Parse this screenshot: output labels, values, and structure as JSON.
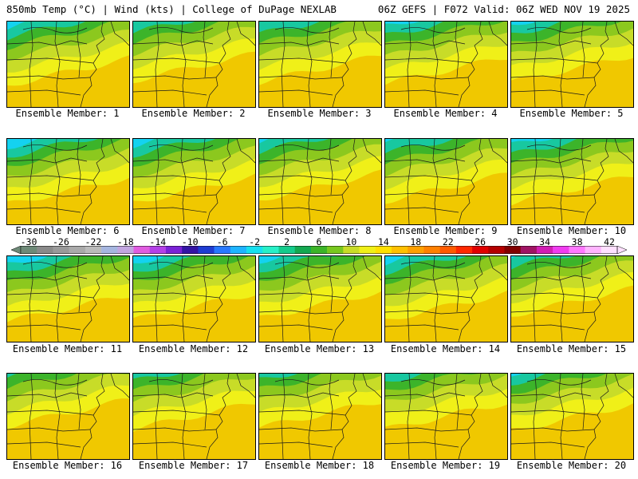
{
  "header": {
    "left": "850mb Temp (°C) | Wind (kts) | College of DuPage NEXLAB",
    "right": "06Z GEFS | F072 Valid: 06Z WED NOV 19 2025"
  },
  "members": [
    {
      "label": "Ensemble Member: 1",
      "cold": 0.3
    },
    {
      "label": "Ensemble Member: 2",
      "cold": 0.45
    },
    {
      "label": "Ensemble Member: 3",
      "cold": 0.4
    },
    {
      "label": "Ensemble Member: 4",
      "cold": 0.35
    },
    {
      "label": "Ensemble Member: 5",
      "cold": 0.4
    },
    {
      "label": "Ensemble Member: 6",
      "cold": 0.25
    },
    {
      "label": "Ensemble Member: 7",
      "cold": 0.3
    },
    {
      "label": "Ensemble Member: 8",
      "cold": 0.4
    },
    {
      "label": "Ensemble Member: 9",
      "cold": 0.35
    },
    {
      "label": "Ensemble Member: 10",
      "cold": 0.3
    },
    {
      "label": "Ensemble Member: 11",
      "cold": 0.25
    },
    {
      "label": "Ensemble Member: 12",
      "cold": 0.3
    },
    {
      "label": "Ensemble Member: 13",
      "cold": 0.35
    },
    {
      "label": "Ensemble Member: 14",
      "cold": 0.3
    },
    {
      "label": "Ensemble Member: 15",
      "cold": 0.45
    },
    {
      "label": "Ensemble Member: 16",
      "cold": 0.65
    },
    {
      "label": "Ensemble Member: 17",
      "cold": 0.55
    },
    {
      "label": "Ensemble Member: 18",
      "cold": 0.6
    },
    {
      "label": "Ensemble Member: 19",
      "cold": 0.55
    },
    {
      "label": "Ensemble Member: 20",
      "cold": 0.5
    }
  ],
  "colorbar": {
    "ticks": [
      "-30",
      "-26",
      "-22",
      "-18",
      "-14",
      "-10",
      "-6",
      "-2",
      "2",
      "6",
      "10",
      "14",
      "18",
      "22",
      "26",
      "30",
      "34",
      "38",
      "42"
    ],
    "colors": [
      "#6e8a78",
      "#8a8a8a",
      "#9a9a9a",
      "#aaaaaa",
      "#bbbbbb",
      "#a6b6e0",
      "#c2a6e0",
      "#e05ce0",
      "#b440e8",
      "#7a22d6",
      "#3414a4",
      "#1e3cd2",
      "#2878ff",
      "#1eb4ff",
      "#16e0f0",
      "#28f0c8",
      "#14cc8c",
      "#14a850",
      "#3cb428",
      "#78c81e",
      "#c8dc28",
      "#f0f018",
      "#ffe000",
      "#ffc000",
      "#ffa000",
      "#ff8000",
      "#ff5a00",
      "#ff2800",
      "#e00000",
      "#b40000",
      "#820000",
      "#a01464",
      "#d21eb4",
      "#f03cf0",
      "#ff78ff",
      "#ffb4ff",
      "#ffe0ff"
    ]
  },
  "colors": {
    "cold": "#2040d0",
    "cool": "#14d2f0",
    "teal": "#18c8a0",
    "green": "#3cb42a",
    "lime": "#8cc81e",
    "yellowgreen": "#c8dc28",
    "yellow": "#f0f018",
    "gold": "#f0c800"
  }
}
